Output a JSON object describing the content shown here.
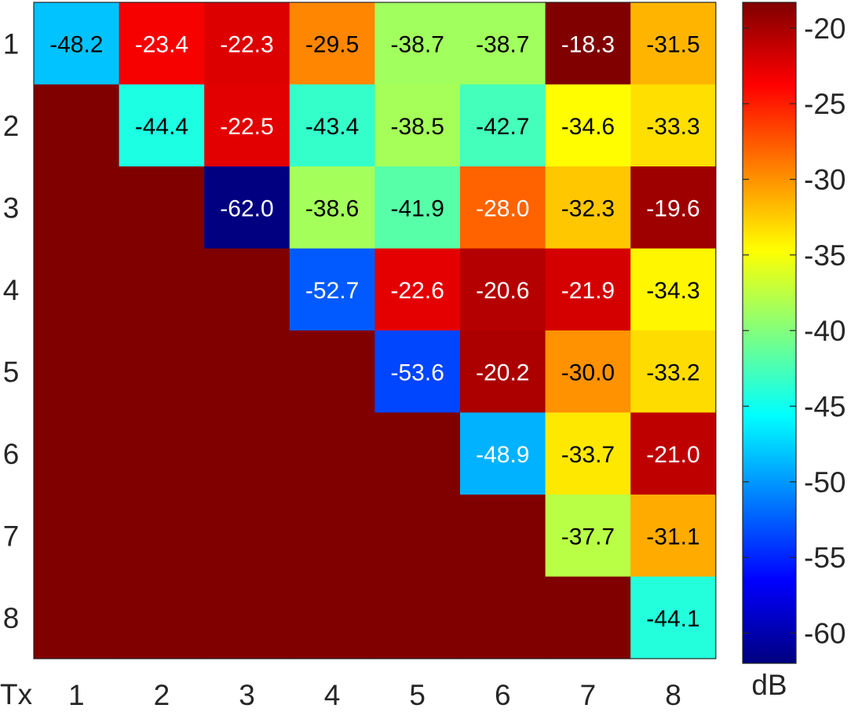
{
  "chart_data": {
    "type": "heatmap",
    "title": "",
    "xlabel": "Tx",
    "ylabel": "",
    "x_ticks": [
      "1",
      "2",
      "3",
      "4",
      "5",
      "6",
      "7",
      "8"
    ],
    "y_ticks": [
      "1",
      "2",
      "3",
      "4",
      "5",
      "6",
      "7",
      "8"
    ],
    "y_direction": "top-to-bottom",
    "values": [
      [
        -48.2,
        -23.4,
        -22.3,
        -29.5,
        -38.7,
        -38.7,
        -18.3,
        -31.5
      ],
      [
        null,
        -44.4,
        -22.5,
        -43.4,
        -38.5,
        -42.7,
        -34.6,
        -33.3
      ],
      [
        null,
        null,
        -62.0,
        -38.6,
        -41.9,
        -28.0,
        -32.3,
        -19.6
      ],
      [
        null,
        null,
        null,
        -52.7,
        -22.6,
        -20.6,
        -21.9,
        -34.3
      ],
      [
        null,
        null,
        null,
        null,
        -53.6,
        -20.2,
        -30.0,
        -33.2
      ],
      [
        null,
        null,
        null,
        null,
        null,
        -48.9,
        -33.7,
        -21.0
      ],
      [
        null,
        null,
        null,
        null,
        null,
        null,
        -37.7,
        -31.1
      ],
      [
        null,
        null,
        null,
        null,
        null,
        null,
        null,
        -44.1
      ]
    ],
    "value_format": "0.0",
    "empty_cell_color": "#800000",
    "colormap": "jet",
    "color_limits": [
      -62.0,
      -18.3
    ],
    "colorbar": {
      "label": "dB",
      "ticks": [
        "-20",
        "-25",
        "-30",
        "-35",
        "-40",
        "-45",
        "-50",
        "-55",
        "-60"
      ],
      "tick_values": [
        -20,
        -25,
        -30,
        -35,
        -40,
        -45,
        -50,
        -55,
        -60
      ],
      "position": "right"
    },
    "grid": false
  }
}
